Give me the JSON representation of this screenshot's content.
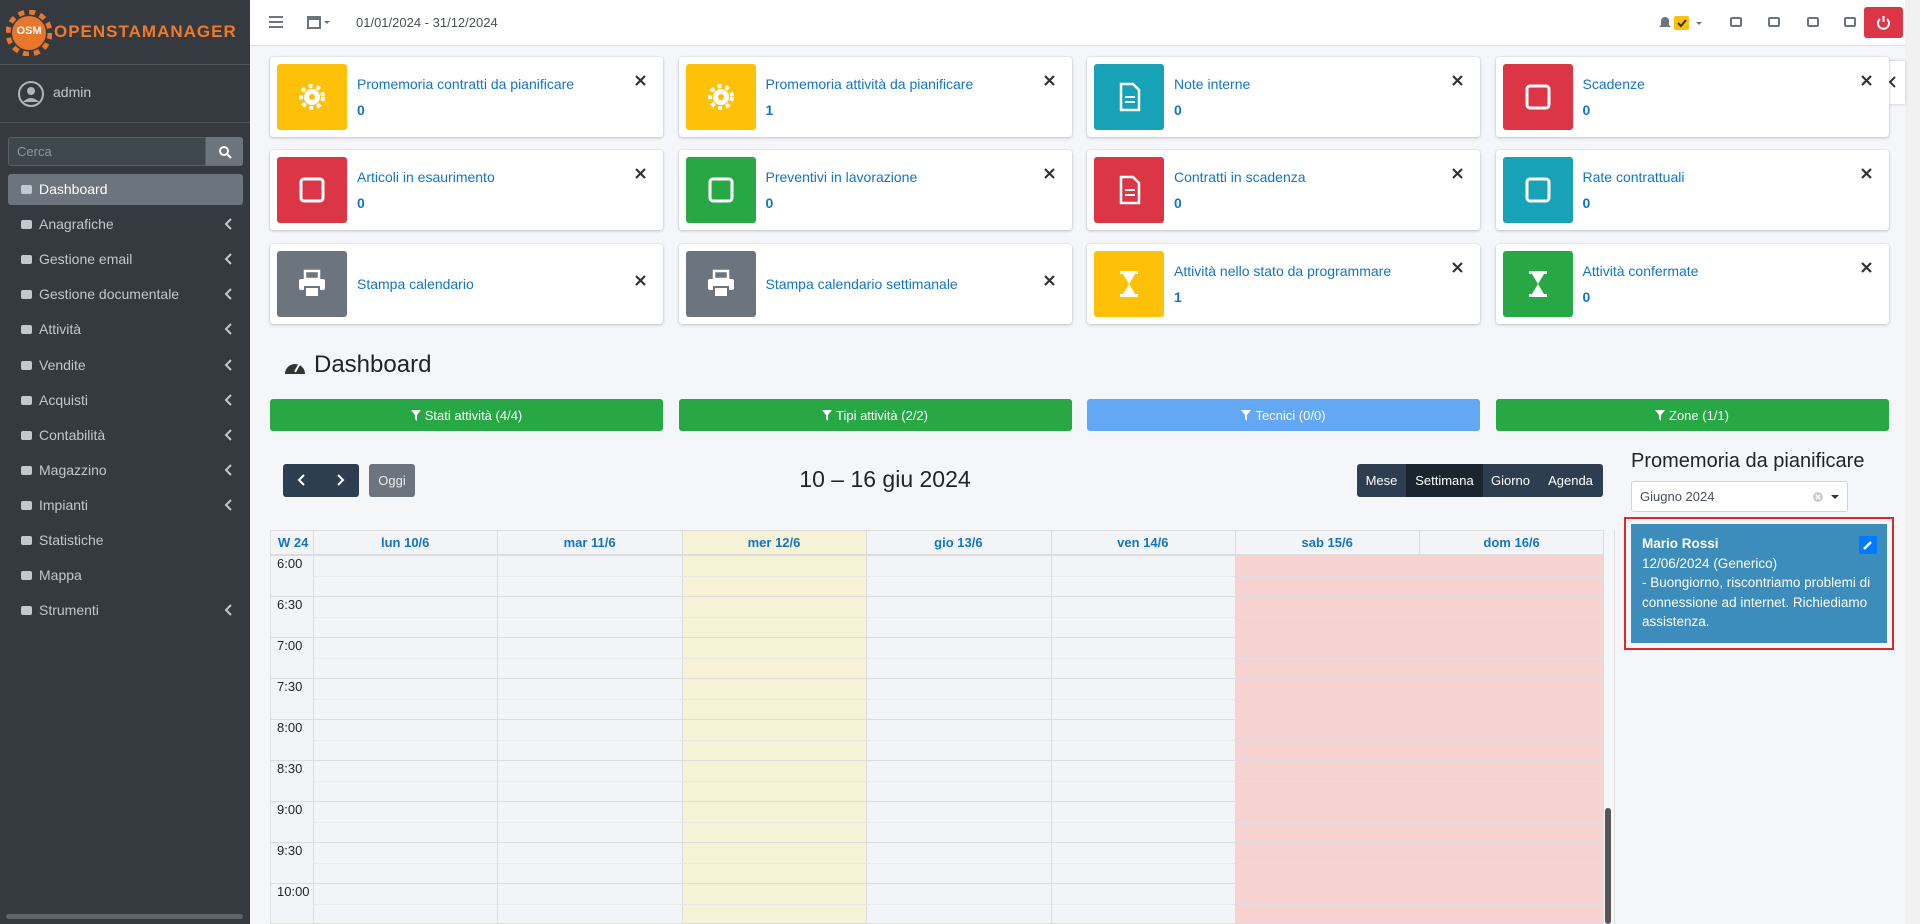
{
  "app": {
    "logo": "OSM",
    "brand": "OPENSTAMANAGER",
    "user": "admin",
    "search_placeholder": "Cerca",
    "menu": [
      {
        "label": "Dashboard",
        "active": true,
        "has_submenu": false
      },
      {
        "label": "Anagrafiche",
        "has_submenu": true
      },
      {
        "label": "Gestione email",
        "has_submenu": true
      },
      {
        "label": "Gestione documentale",
        "has_submenu": true
      },
      {
        "label": "Attività",
        "has_submenu": true
      },
      {
        "label": "Vendite",
        "has_submenu": true
      },
      {
        "label": "Acquisti",
        "has_submenu": true
      },
      {
        "label": "Contabilità",
        "has_submenu": true
      },
      {
        "label": "Magazzino",
        "has_submenu": true
      },
      {
        "label": "Impianti",
        "has_submenu": true
      },
      {
        "label": "Statistiche",
        "has_submenu": false
      },
      {
        "label": "Mappa",
        "has_submenu": false
      },
      {
        "label": "Strumenti",
        "has_submenu": true
      }
    ]
  },
  "topbar": {
    "date_range": "01/01/2024 - 31/12/2024"
  },
  "widgets": [
    {
      "title": "Promemoria contratti da pianificare",
      "value": 0,
      "color": "#ffc107"
    },
    {
      "title": "Promemoria attività da pianificare",
      "value": 1,
      "color": "#ffc107"
    },
    {
      "title": "Note interne",
      "value": 0,
      "color": "#17a2b8"
    },
    {
      "title": "Scadenze",
      "value": 0,
      "color": "#dc3545"
    },
    {
      "title": "Articoli in esaurimento",
      "value": 0,
      "color": "#dc3545"
    },
    {
      "title": "Preventivi in lavorazione",
      "value": 0,
      "color": "#28a745"
    },
    {
      "title": "Contratti in scadenza",
      "value": 0,
      "color": "#dc3545"
    },
    {
      "title": "Rate contrattuali",
      "value": 0,
      "color": "#17a2b8"
    },
    {
      "title": "Stampa calendario",
      "color": "#6c757d"
    },
    {
      "title": "Stampa calendario settimanale",
      "color": "#6c757d"
    },
    {
      "title": "Attività nello stato da programmare",
      "value": 1,
      "color": "#ffc107"
    },
    {
      "title": "Attività confermate",
      "value": 0,
      "color": "#28a745"
    }
  ],
  "dashboard": {
    "title": "Dashboard",
    "filters": [
      {
        "label": "Stati attività (4/4)",
        "color": "#28a745"
      },
      {
        "label": "Tipi attività (2/2)",
        "color": "#28a745"
      },
      {
        "label": "Tecnici (0/0)",
        "color": "#62a8f5"
      },
      {
        "label": "Zone (1/1)",
        "color": "#28a745"
      }
    ],
    "calendar": {
      "title": "10 – 16 giu 2024",
      "today_button": "Oggi",
      "views": [
        {
          "label": "Mese"
        },
        {
          "label": "Settimana",
          "active": true
        },
        {
          "label": "Giorno"
        },
        {
          "label": "Agenda"
        }
      ],
      "week": "W 24",
      "days": [
        "lun 10/6",
        "mar 11/6",
        "mer 12/6",
        "gio 13/6",
        "ven 14/6",
        "sab 15/6",
        "dom 16/6"
      ],
      "times": [
        "6:00",
        "6:30",
        "7:00",
        "7:30",
        "8:00",
        "8:30",
        "9:00",
        "9:30",
        "10:00"
      ]
    },
    "reminders": {
      "title": "Promemoria da pianificare",
      "month": "Giugno 2024",
      "cards": [
        {
          "name": "Mario Rossi",
          "date": "12/06/2024 (Generico)",
          "text": "- Buongiorno, riscontriamo problemi di connessione ad internet. Richiediamo assistenza."
        }
      ]
    }
  }
}
